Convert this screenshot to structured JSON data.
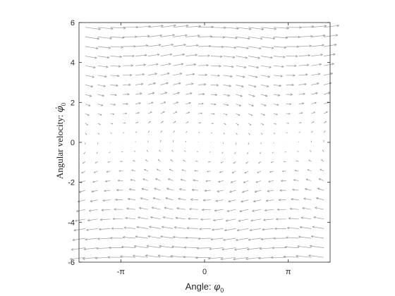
{
  "chart_data": {
    "type": "quiver",
    "title": "",
    "xlabel_prefix": "Angle: ",
    "xlabel_symbol": "φ",
    "xlabel_subscript": "0",
    "ylabel_prefix": "Angular velocity: ",
    "ylabel_symbol": "φ̇",
    "ylabel_subscript": "0",
    "xlim": [
      -4.712,
      4.712
    ],
    "ylim": [
      -6,
      6
    ],
    "x_ticks": [
      {
        "value": -3.1416,
        "label": "-π"
      },
      {
        "value": 0,
        "label": "0"
      },
      {
        "value": 3.1416,
        "label": "π"
      }
    ],
    "y_ticks": [
      {
        "value": -6,
        "label": "-6"
      },
      {
        "value": -4,
        "label": "-4"
      },
      {
        "value": -2,
        "label": "-2"
      },
      {
        "value": 0,
        "label": "0"
      },
      {
        "value": 2,
        "label": "2"
      },
      {
        "value": 4,
        "label": "4"
      },
      {
        "value": 6,
        "label": "6"
      }
    ],
    "vector_field": {
      "dx": "y",
      "dy": "-sin(x)",
      "x_count": 20,
      "y_count": 25
    },
    "grid": false,
    "arrow_color": "#9a9a9a",
    "axis_color": "#262626"
  }
}
